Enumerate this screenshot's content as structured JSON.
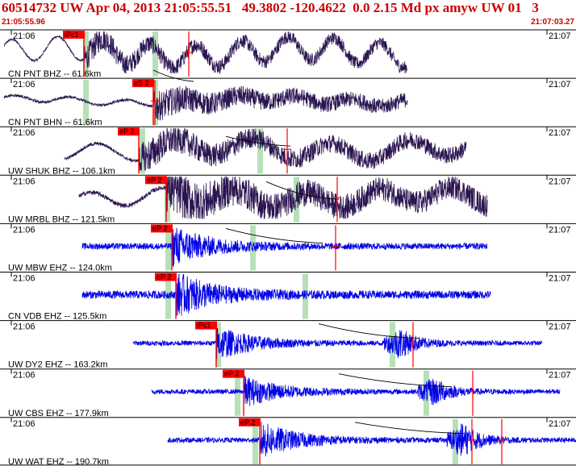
{
  "header": {
    "title": "60514732 UW Apr 04, 2013 21:05:55.51   49.3802 -120.4622  0.0 2.15 Md px amyw UW 01   3",
    "time_start": "21:05:55.96",
    "time_end": "21:07:03.27"
  },
  "colors": {
    "header_text": "#cc0000",
    "trace_dark": "#2a1450",
    "trace_blue": "#0000e6",
    "pick_box": "#ff0000",
    "pick_line": "#ff0000",
    "window_band": "#b8e0b8",
    "theory_curve": "#000000"
  },
  "traces": [
    {
      "label": "CN PNT BHZ --  61.6km",
      "t_left": "21:06",
      "t_right": "21:07",
      "pick": "iPc1",
      "color": "dark"
    },
    {
      "label": "CN PNT BHN --  61.6km",
      "t_left": "21:06",
      "t_right": "21:07",
      "pick": "eS 2",
      "color": "dark"
    },
    {
      "label": "UW SHUK BHZ -- 106.1km",
      "t_left": "21:06",
      "t_right": "21:07",
      "pick": "eP 2",
      "color": "dark"
    },
    {
      "label": "UW MRBL BHZ -- 121.5km",
      "t_left": "21:06",
      "t_right": "21:07",
      "pick": "eP 2",
      "color": "dark"
    },
    {
      "label": "UW MBW EHZ -- 124.0km",
      "t_left": "21:06",
      "t_right": "21:07",
      "pick": "eP 2",
      "color": "blue"
    },
    {
      "label": "CN VDB EHZ -- 125.5km",
      "t_left": "21:06",
      "t_right": "21:07",
      "pick": "eP 2",
      "color": "blue"
    },
    {
      "label": "UW DY2 EHZ -- 163.2km",
      "t_left": "21:06",
      "t_right": "21:07",
      "pick": "iPc1",
      "color": "blue"
    },
    {
      "label": "UW CBS EHZ -- 177.9km",
      "t_left": "21:06",
      "t_right": "21:07",
      "pick": "eP 2",
      "color": "blue"
    },
    {
      "label": "UW WAT EHZ -- 190.7km",
      "t_left": "21:06",
      "t_right": "21:07",
      "pick": "eP 2",
      "color": "blue"
    }
  ]
}
